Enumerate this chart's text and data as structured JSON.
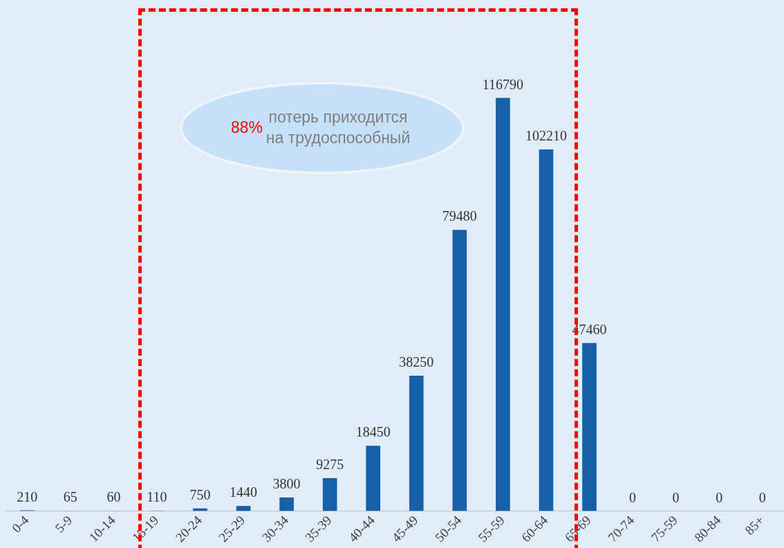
{
  "chart_data": {
    "type": "bar",
    "categories": [
      "0-4",
      "5-9",
      "10-14",
      "15-19",
      "20-24",
      "25-29",
      "30-34",
      "35-39",
      "40-44",
      "45-49",
      "50-54",
      "55-59",
      "60-64",
      "65-69",
      "70-74",
      "75-59",
      "80-84",
      "85+"
    ],
    "values": [
      210,
      65,
      60,
      110,
      750,
      1440,
      3800,
      9275,
      18450,
      38250,
      79480,
      116790,
      102210,
      47460,
      0,
      0,
      0,
      0
    ],
    "color": "#1560a8",
    "data_labels": true,
    "grid": false,
    "legend": false,
    "tick_labels": "x",
    "annotations": [
      "88% потерь приходится на трудоспособный"
    ]
  }
}
